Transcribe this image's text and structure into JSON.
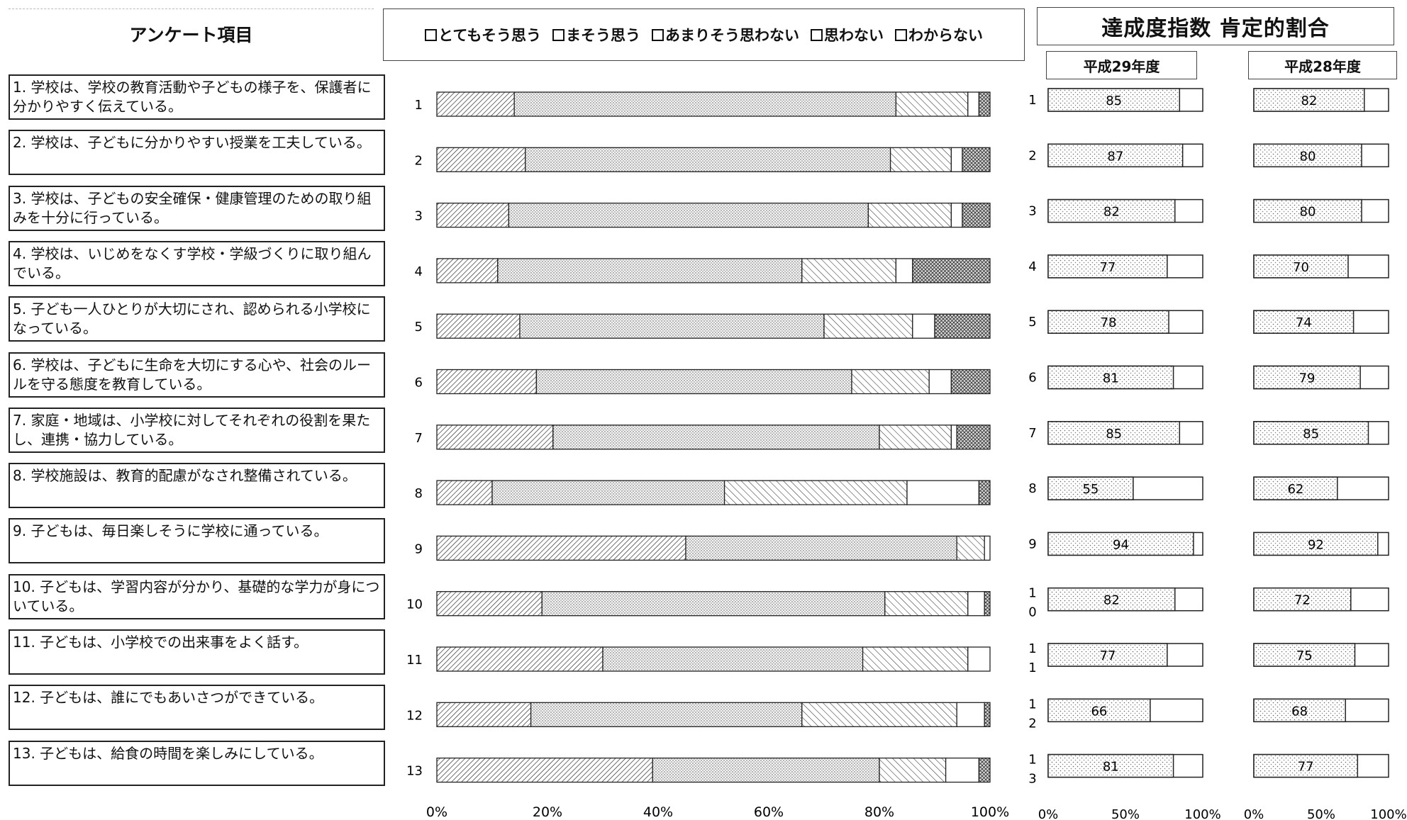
{
  "header": {
    "items_title": "アンケート項目",
    "right_title": "達成度指数  肯定的割合",
    "year_current": "平成29年度",
    "year_previous": "平成28年度"
  },
  "legend": [
    {
      "label": "とてもそう思う",
      "pattern": "dense-diagonal"
    },
    {
      "label": "まそう思う",
      "pattern": "fine-dots"
    },
    {
      "label": "あまりそう思わない",
      "pattern": "wide-diagonal"
    },
    {
      "label": "思わない",
      "pattern": "blank"
    },
    {
      "label": "わからない",
      "pattern": "crosshatch"
    }
  ],
  "questions": [
    "1. 学校は、学校の教育活動や子どもの様子を、保護者に分かりやすく伝えている。",
    "2. 学校は、子どもに分かりやすい授業を工夫している。",
    "3. 学校は、子どもの安全確保・健康管理のための取り組みを十分に行っている。",
    "4. 学校は、いじめをなくす学校・学級づくりに取り組んでいる。",
    "5. 子ども一人ひとりが大切にされ、認められる小学校になっている。",
    "6. 学校は、子どもに生命を大切にする心や、社会のルールを守る態度を教育している。",
    "7. 家庭・地域は、小学校に対してそれぞれの役割を果たし、連携・協力している。",
    "8. 学校施設は、教育的配慮がなされ整備されている。",
    "9. 子どもは、毎日楽しそうに学校に通っている。",
    "10. 子どもは、学習内容が分かり、基礎的な学力が身についている。",
    "11. 子どもは、小学校での出来事をよく話す。",
    "12. 子どもは、誰にでもあいさつができている。",
    "13. 子どもは、給食の時間を楽しみにしている。"
  ],
  "chart_data": [
    {
      "type": "bar",
      "orientation": "horizontal",
      "stacked": true,
      "categories": [
        "1",
        "2",
        "3",
        "4",
        "5",
        "6",
        "7",
        "8",
        "9",
        "10",
        "11",
        "12",
        "13"
      ],
      "series": [
        {
          "name": "とてもそう思う",
          "values": [
            14,
            16,
            13,
            11,
            15,
            18,
            21,
            10,
            45,
            19,
            30,
            17,
            39
          ]
        },
        {
          "name": "まそう思う",
          "values": [
            69,
            66,
            65,
            55,
            55,
            57,
            59,
            42,
            49,
            62,
            47,
            49,
            41
          ]
        },
        {
          "name": "あまりそう思わない",
          "values": [
            13,
            11,
            15,
            17,
            16,
            14,
            13,
            33,
            5,
            15,
            19,
            28,
            12
          ]
        },
        {
          "name": "思わない",
          "values": [
            2,
            2,
            2,
            3,
            4,
            4,
            1,
            13,
            1,
            3,
            4,
            5,
            6
          ]
        },
        {
          "name": "わからない",
          "values": [
            2,
            5,
            5,
            14,
            10,
            7,
            6,
            2,
            0,
            1,
            0,
            1,
            2
          ]
        }
      ],
      "xlim": [
        0,
        100
      ],
      "xticks": [
        "0%",
        "20%",
        "40%",
        "60%",
        "80%",
        "100%"
      ]
    },
    {
      "type": "bar",
      "orientation": "horizontal",
      "title": "平成29年度",
      "categories": [
        "1",
        "2",
        "3",
        "4",
        "5",
        "6",
        "7",
        "8",
        "9",
        "10",
        "11",
        "12",
        "13"
      ],
      "category_labels": [
        "1",
        "2",
        "3",
        "4",
        "5",
        "6",
        "7",
        "8",
        "9",
        "1\n0",
        "1\n1",
        "1\n2",
        "1\n3"
      ],
      "values": [
        85,
        87,
        82,
        77,
        78,
        81,
        85,
        55,
        94,
        82,
        77,
        66,
        81
      ],
      "xlim": [
        0,
        100
      ],
      "xticks": [
        "0%",
        "50%",
        "100%"
      ]
    },
    {
      "type": "bar",
      "orientation": "horizontal",
      "title": "平成28年度",
      "categories": [
        "1",
        "2",
        "3",
        "4",
        "5",
        "6",
        "7",
        "8",
        "9",
        "10",
        "11",
        "12",
        "13"
      ],
      "values": [
        82,
        80,
        80,
        70,
        74,
        79,
        85,
        62,
        92,
        72,
        75,
        68,
        77
      ],
      "xlim": [
        0,
        100
      ],
      "xticks": [
        "0%",
        "50%",
        "100%"
      ]
    }
  ]
}
